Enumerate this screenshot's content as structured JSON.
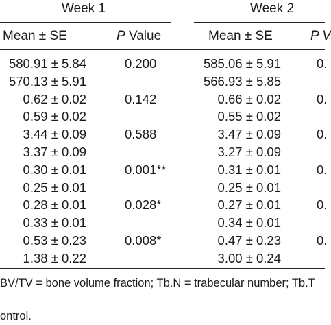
{
  "header": {
    "week1": "Week 1",
    "week2": "Week 2",
    "col_mean1": "Mean ± SE",
    "col_p1_italic": "P",
    "col_p1_rest": " Value",
    "col_mean2": "Mean ± SE",
    "col_p2_partial": "P V"
  },
  "rows": [
    {
      "m1": "580.91 ± 5.84",
      "p1": "0.200",
      "m2": "585.06 ± 5.91",
      "p2": "0."
    },
    {
      "m1": "570.13 ± 5.91",
      "p1": "",
      "m2": "566.93 ± 5.85",
      "p2": ""
    },
    {
      "m1": "0.62 ± 0.02",
      "p1": "0.142",
      "m2": "0.66 ± 0.02",
      "p2": "0."
    },
    {
      "m1": "0.59 ± 0.02",
      "p1": "",
      "m2": "0.55 ± 0.02",
      "p2": ""
    },
    {
      "m1": "3.44 ± 0.09",
      "p1": "0.588",
      "m2": "3.47 ± 0.09",
      "p2": "0."
    },
    {
      "m1": "3.37 ± 0.09",
      "p1": "",
      "m2": "3.27 ± 0.09",
      "p2": ""
    },
    {
      "m1": "0.30 ± 0.01",
      "p1": "0.001**",
      "m2": "0.31 ± 0.01",
      "p2": "0."
    },
    {
      "m1": "0.25 ± 0.01",
      "p1": "",
      "m2": "0.25 ± 0.01",
      "p2": ""
    },
    {
      "m1": "0.28 ± 0.01",
      "p1": "0.028*",
      "m2": "0.27 ± 0.01",
      "p2": "0."
    },
    {
      "m1": "0.33 ± 0.01",
      "p1": "",
      "m2": "0.34 ± 0.01",
      "p2": ""
    },
    {
      "m1": "0.53 ± 0.23",
      "p1": "0.008*",
      "m2": "0.47 ± 0.23",
      "p2": "0."
    },
    {
      "m1": "1.38 ± 0.22",
      "p1": "",
      "m2": "3.00 ± 0.24",
      "p2": ""
    }
  ],
  "footnote": {
    "line1": "BV/TV = bone volume fraction; Tb.N = trabecular number; Tb.T",
    "line2": "ontrol."
  }
}
